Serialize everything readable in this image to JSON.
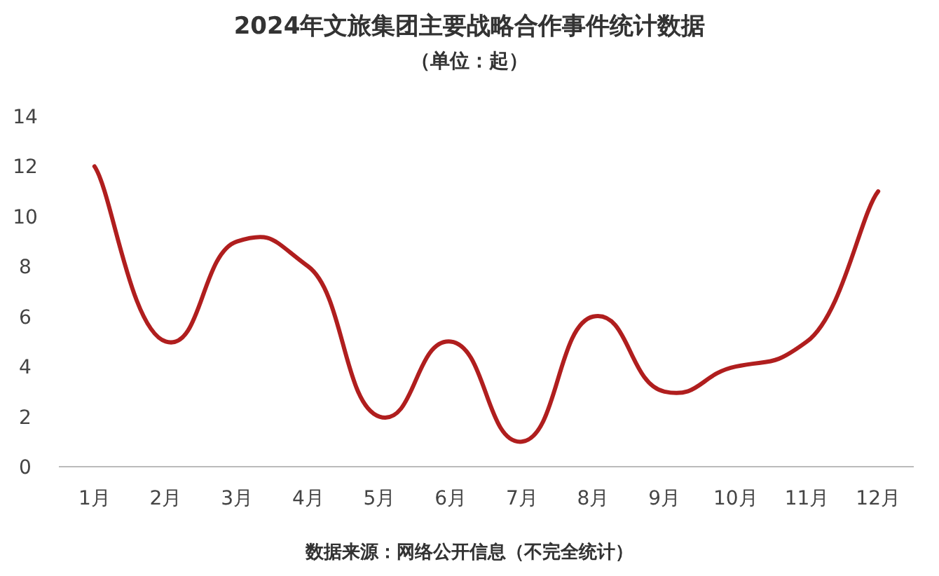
{
  "chart_data": {
    "type": "line",
    "title": "2024年文旅集团主要战略合作事件统计数据",
    "subtitle": "（单位：起）",
    "categories": [
      "1月",
      "2月",
      "3月",
      "4月",
      "5月",
      "6月",
      "7月",
      "8月",
      "9月",
      "10月",
      "11月",
      "12月"
    ],
    "series": [
      {
        "color": "#b01e1e",
        "values": [
          12,
          5,
          9,
          8,
          2,
          5,
          1,
          6,
          3,
          4,
          5,
          11
        ]
      }
    ],
    "ylim": [
      0,
      14
    ],
    "yticks": [
      0,
      2,
      4,
      6,
      8,
      10,
      12,
      14
    ],
    "annotations": [
      "数据来源：网络公开信息（不完全统计）"
    ],
    "grid": false,
    "marker": "none",
    "line_style": "solid"
  }
}
